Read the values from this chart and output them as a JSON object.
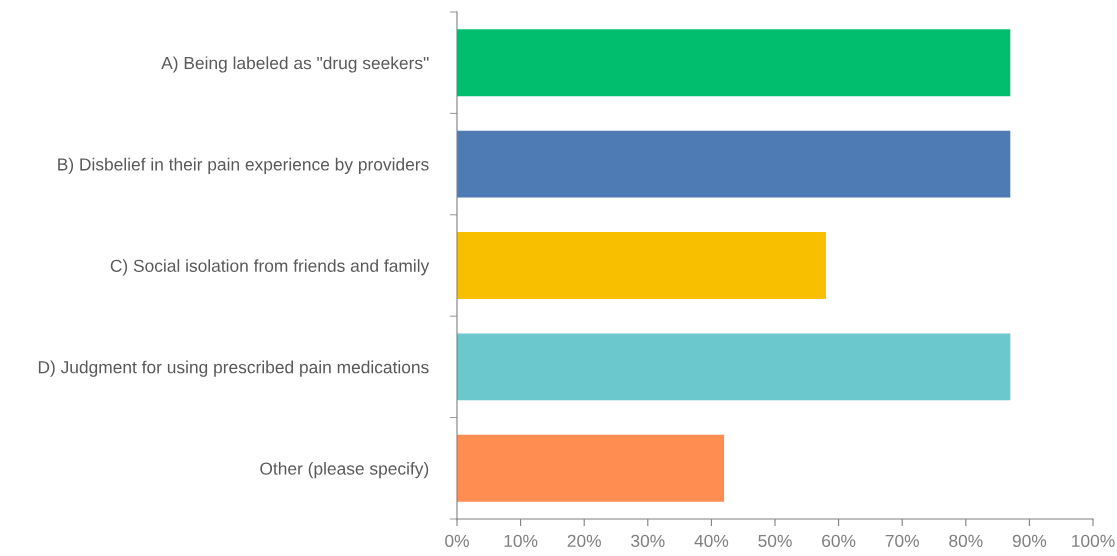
{
  "chart_data": {
    "type": "bar",
    "orientation": "horizontal",
    "categories": [
      "A) Being labeled as \"drug seekers\"",
      "B) Disbelief in their pain experience by providers",
      "C) Social isolation from friends and family",
      "D) Judgment for using prescribed pain medications",
      "Other (please specify)"
    ],
    "values": [
      87,
      87,
      58,
      87,
      42
    ],
    "colors": [
      "#00be6e",
      "#4f7bb4",
      "#f8be00",
      "#6bc8cc",
      "#ff8c50"
    ],
    "xlim": [
      0,
      100
    ],
    "xticks": [
      {
        "value": 0,
        "label": "0%"
      },
      {
        "value": 10,
        "label": "10%"
      },
      {
        "value": 20,
        "label": "20%"
      },
      {
        "value": 30,
        "label": "30%"
      },
      {
        "value": 40,
        "label": "40%"
      },
      {
        "value": 50,
        "label": "50%"
      },
      {
        "value": 60,
        "label": "60%"
      },
      {
        "value": 70,
        "label": "70%"
      },
      {
        "value": 80,
        "label": "80%"
      },
      {
        "value": 90,
        "label": "90%"
      },
      {
        "value": 100,
        "label": "100%"
      }
    ],
    "grid": false,
    "legend": false
  }
}
